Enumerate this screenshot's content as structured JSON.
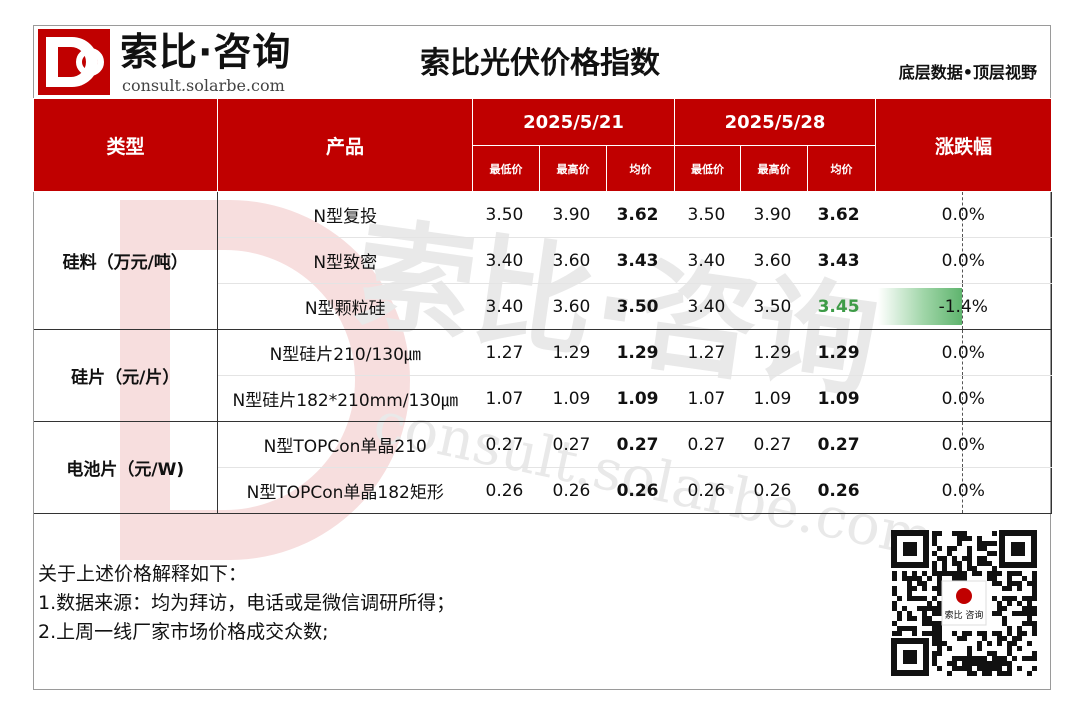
{
  "brand": {
    "name_cn": "索比·咨询",
    "url": "consult.solarbe.com"
  },
  "title": "索比光伏价格指数",
  "slogan": "底层数据•顶层视野",
  "colors": {
    "header_bg": "#c00000",
    "header_text": "#ffffff",
    "down_green": "#3d9b47"
  },
  "table": {
    "headers": {
      "type": "类型",
      "product": "产品",
      "date1": "2025/5/21",
      "date2": "2025/5/28",
      "change": "涨跌幅",
      "low": "最低价",
      "high": "最高价",
      "avg": "均价"
    },
    "groups": [
      {
        "category": "硅料（万元/吨）",
        "rows": [
          {
            "product": "N型复投",
            "d1_low": "3.50",
            "d1_high": "3.90",
            "d1_avg": "3.62",
            "d2_low": "3.50",
            "d2_high": "3.90",
            "d2_avg": "3.62",
            "change": "0.0%"
          },
          {
            "product": "N型致密",
            "d1_low": "3.40",
            "d1_high": "3.60",
            "d1_avg": "3.43",
            "d2_low": "3.40",
            "d2_high": "3.60",
            "d2_avg": "3.43",
            "change": "0.0%"
          },
          {
            "product": "N型颗粒硅",
            "d1_low": "3.40",
            "d1_high": "3.60",
            "d1_avg": "3.50",
            "d2_low": "3.40",
            "d2_high": "3.50",
            "d2_avg": "3.45",
            "change": "-1.4%"
          }
        ]
      },
      {
        "category": "硅片（元/片）",
        "rows": [
          {
            "product": "N型硅片210/130㎛",
            "d1_low": "1.27",
            "d1_high": "1.29",
            "d1_avg": "1.29",
            "d2_low": "1.27",
            "d2_high": "1.29",
            "d2_avg": "1.29",
            "change": "0.0%"
          },
          {
            "product": "N型硅片182*210mm/130㎛",
            "d1_low": "1.07",
            "d1_high": "1.09",
            "d1_avg": "1.09",
            "d2_low": "1.07",
            "d2_high": "1.09",
            "d2_avg": "1.09",
            "change": "0.0%"
          }
        ]
      },
      {
        "category": "电池片（元/W)",
        "rows": [
          {
            "product": "N型TOPCon单晶210",
            "d1_low": "0.27",
            "d1_high": "0.27",
            "d1_avg": "0.27",
            "d2_low": "0.27",
            "d2_high": "0.27",
            "d2_avg": "0.27",
            "change": "0.0%"
          },
          {
            "product": "N型TOPCon单晶182矩形",
            "d1_low": "0.26",
            "d1_high": "0.26",
            "d1_avg": "0.26",
            "d2_low": "0.26",
            "d2_high": "0.26",
            "d2_avg": "0.26",
            "change": "0.0%"
          }
        ]
      }
    ]
  },
  "notes": [
    "关于上述价格解释如下：",
    "1.数据来源：均为拜访，电话或是微信调研所得；",
    "2.上周一线厂家市场价格成交众数;"
  ],
  "watermark": {
    "text_cn": "索比·咨询",
    "text_url": "consult.solarbe.com"
  },
  "qr_label": "索比 咨询"
}
